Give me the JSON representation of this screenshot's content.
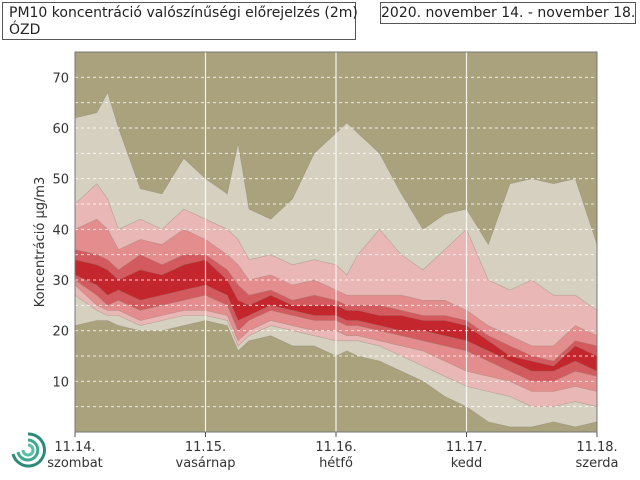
{
  "header": {
    "title": "PM10 koncentráció valószínűségi előrejelzés (2m)",
    "location": "ÓZD",
    "date_range": "2020. november 14. - november 18."
  },
  "colors": {
    "background": "#a9a27d",
    "band_outer": "#d5d0c0",
    "band_2": "#e9b7b5",
    "band_3": "#e38d8e",
    "band_4": "#d35a5e",
    "band_inner": "#c3262c"
  },
  "chart_data": {
    "type": "area",
    "title": "PM10 koncentráció valószínűségi előrejelzés (2m)",
    "ylabel": "Koncentráció µg/m3",
    "ylim": [
      0,
      75
    ],
    "yticks": [
      10,
      20,
      30,
      40,
      50,
      60,
      70
    ],
    "xlim": [
      0,
      96
    ],
    "xticks": [
      {
        "x": 0,
        "date": "11.14.",
        "day": "szombat"
      },
      {
        "x": 24,
        "date": "11.15.",
        "day": "vasárnap"
      },
      {
        "x": 48,
        "date": "11.16.",
        "day": "hétfő"
      },
      {
        "x": 72,
        "date": "11.17.",
        "day": "kedd"
      },
      {
        "x": 96,
        "date": "11.18.",
        "day": "szerda"
      }
    ],
    "grid": true,
    "x": [
      0,
      4,
      6,
      8,
      12,
      16,
      20,
      24,
      28,
      30,
      32,
      36,
      40,
      44,
      48,
      50,
      52,
      56,
      60,
      64,
      68,
      72,
      76,
      80,
      84,
      88,
      92,
      96
    ],
    "series": [
      {
        "values_low": [
          21,
          22,
          22,
          21,
          20,
          20,
          21,
          22,
          21,
          16,
          18,
          19,
          17,
          17,
          15,
          16,
          15,
          14,
          12,
          10,
          7,
          5,
          2,
          1,
          1,
          2,
          1,
          2
        ],
        "values_high": [
          62,
          63,
          67,
          60,
          48,
          47,
          54,
          50,
          47,
          57,
          44,
          42,
          46,
          55,
          59,
          61,
          59,
          55,
          47,
          40,
          43,
          44,
          37,
          49,
          50,
          49,
          50,
          37
        ]
      },
      {
        "values_low": [
          27,
          24,
          23,
          23,
          21,
          22,
          23,
          23,
          22,
          17,
          19,
          21,
          20,
          19,
          18,
          18,
          18,
          17,
          15,
          13,
          11,
          9,
          8,
          7,
          5,
          5,
          6,
          5
        ],
        "values_high": [
          45,
          49,
          46,
          40,
          42,
          40,
          44,
          42,
          40,
          38,
          34,
          35,
          33,
          34,
          33,
          31,
          35,
          40,
          35,
          32,
          36,
          40,
          30,
          28,
          30,
          27,
          27,
          24
        ]
      },
      {
        "values_low": [
          29,
          25,
          24,
          24,
          22,
          23,
          24,
          24,
          23,
          18,
          20,
          22,
          21,
          20,
          20,
          19,
          19,
          18,
          17,
          16,
          14,
          12,
          11,
          10,
          8,
          8,
          9,
          8
        ],
        "values_high": [
          40,
          42,
          40,
          36,
          38,
          37,
          40,
          38,
          35,
          33,
          30,
          31,
          29,
          30,
          28,
          27,
          27,
          27,
          27,
          26,
          26,
          24,
          21,
          19,
          17,
          17,
          21,
          19
        ]
      },
      {
        "values_low": [
          30,
          27,
          25,
          26,
          24,
          25,
          26,
          27,
          25,
          20,
          22,
          24,
          23,
          22,
          22,
          21,
          21,
          20,
          19,
          18,
          17,
          16,
          14,
          12,
          10,
          10,
          12,
          11
        ],
        "values_high": [
          36,
          35,
          34,
          32,
          35,
          33,
          35,
          35,
          32,
          29,
          27,
          28,
          26,
          27,
          26,
          25,
          25,
          25,
          24,
          23,
          23,
          22,
          19,
          17,
          15,
          14,
          18,
          17
        ]
      },
      {
        "values_low": [
          31,
          29,
          27,
          28,
          26,
          27,
          28,
          29,
          27,
          22,
          23,
          25,
          24,
          23,
          23,
          22,
          22,
          21,
          20,
          20,
          19,
          18,
          16,
          14,
          12,
          12,
          14,
          12
        ],
        "values_high": [
          34,
          33,
          32,
          30,
          32,
          31,
          33,
          34,
          30,
          26,
          25,
          27,
          25,
          25,
          25,
          24,
          24,
          23,
          23,
          22,
          22,
          21,
          18,
          15,
          14,
          13,
          17,
          15
        ]
      }
    ]
  },
  "logo": {
    "icon": "swirl-logo-icon"
  }
}
